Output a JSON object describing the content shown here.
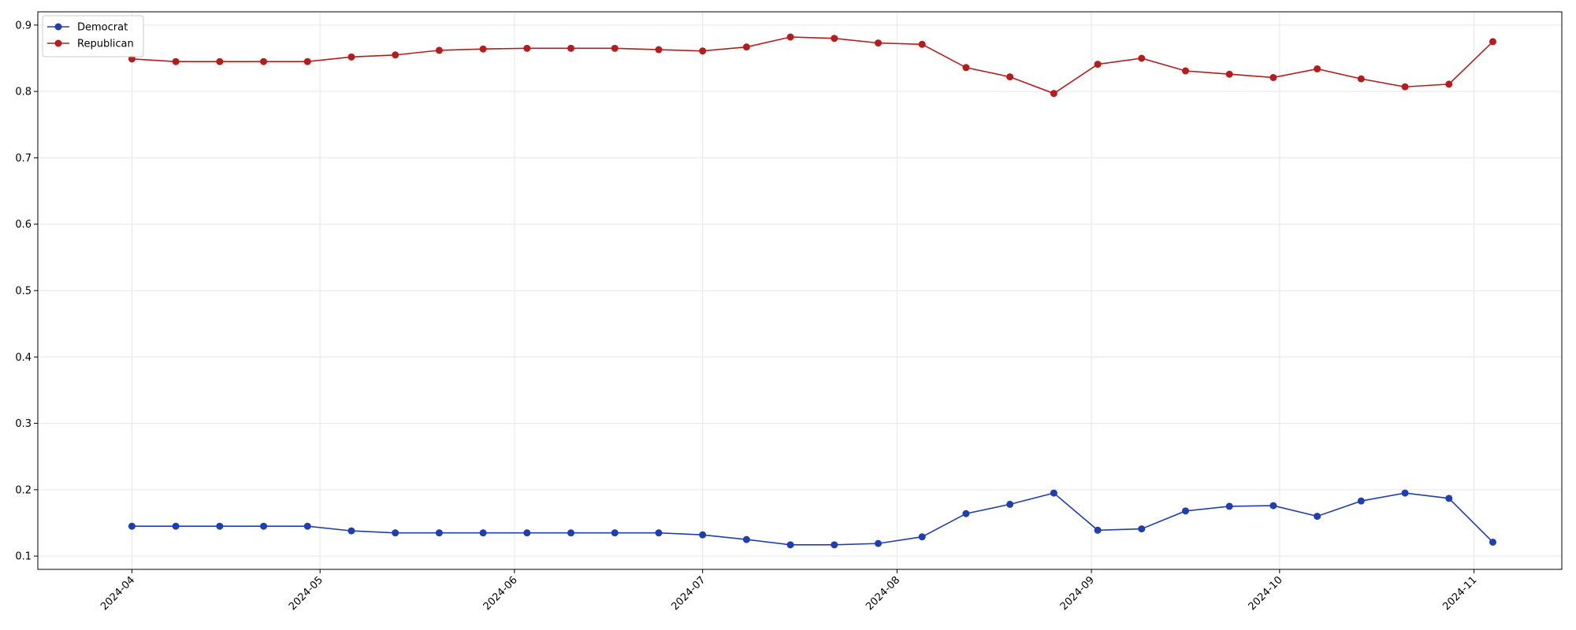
{
  "chart_data": {
    "type": "line",
    "title": "",
    "xlabel": "",
    "ylabel": "",
    "x": [
      "2024-04-01",
      "2024-04-08",
      "2024-04-15",
      "2024-04-22",
      "2024-04-29",
      "2024-05-06",
      "2024-05-13",
      "2024-05-20",
      "2024-05-27",
      "2024-06-03",
      "2024-06-10",
      "2024-06-17",
      "2024-06-24",
      "2024-07-01",
      "2024-07-08",
      "2024-07-15",
      "2024-07-22",
      "2024-07-29",
      "2024-08-05",
      "2024-08-12",
      "2024-08-19",
      "2024-08-26",
      "2024-09-02",
      "2024-09-09",
      "2024-09-16",
      "2024-09-23",
      "2024-09-30",
      "2024-10-07",
      "2024-10-14",
      "2024-10-21",
      "2024-10-28",
      "2024-11-04"
    ],
    "series": [
      {
        "name": "Democrat",
        "color": "#1f3fb0",
        "values": [
          0.145,
          0.145,
          0.145,
          0.145,
          0.145,
          0.138,
          0.135,
          0.135,
          0.135,
          0.135,
          0.135,
          0.135,
          0.135,
          0.132,
          0.125,
          0.117,
          0.117,
          0.119,
          0.129,
          0.164,
          0.178,
          0.195,
          0.139,
          0.141,
          0.168,
          0.175,
          0.176,
          0.16,
          0.183,
          0.195,
          0.187,
          0.121
        ]
      },
      {
        "name": "Republican",
        "color": "#b71c1c",
        "values": [
          0.849,
          0.845,
          0.845,
          0.845,
          0.845,
          0.852,
          0.855,
          0.862,
          0.864,
          0.865,
          0.865,
          0.865,
          0.863,
          0.861,
          0.867,
          0.882,
          0.88,
          0.873,
          0.871,
          0.836,
          0.822,
          0.797,
          0.841,
          0.85,
          0.831,
          0.826,
          0.821,
          0.834,
          0.819,
          0.807,
          0.811,
          0.875
        ]
      }
    ],
    "x_ticks": [
      "2024-04",
      "2024-05",
      "2024-06",
      "2024-07",
      "2024-08",
      "2024-09",
      "2024-10",
      "2024-11"
    ],
    "y_ticks": [
      "0.1",
      "0.2",
      "0.3",
      "0.4",
      "0.5",
      "0.6",
      "0.7",
      "0.8",
      "0.9"
    ],
    "ylim": [
      0.08,
      0.92
    ],
    "xlim": [
      "2024-03-17",
      "2024-11-15"
    ],
    "grid": true,
    "legend_position": "top-left"
  }
}
